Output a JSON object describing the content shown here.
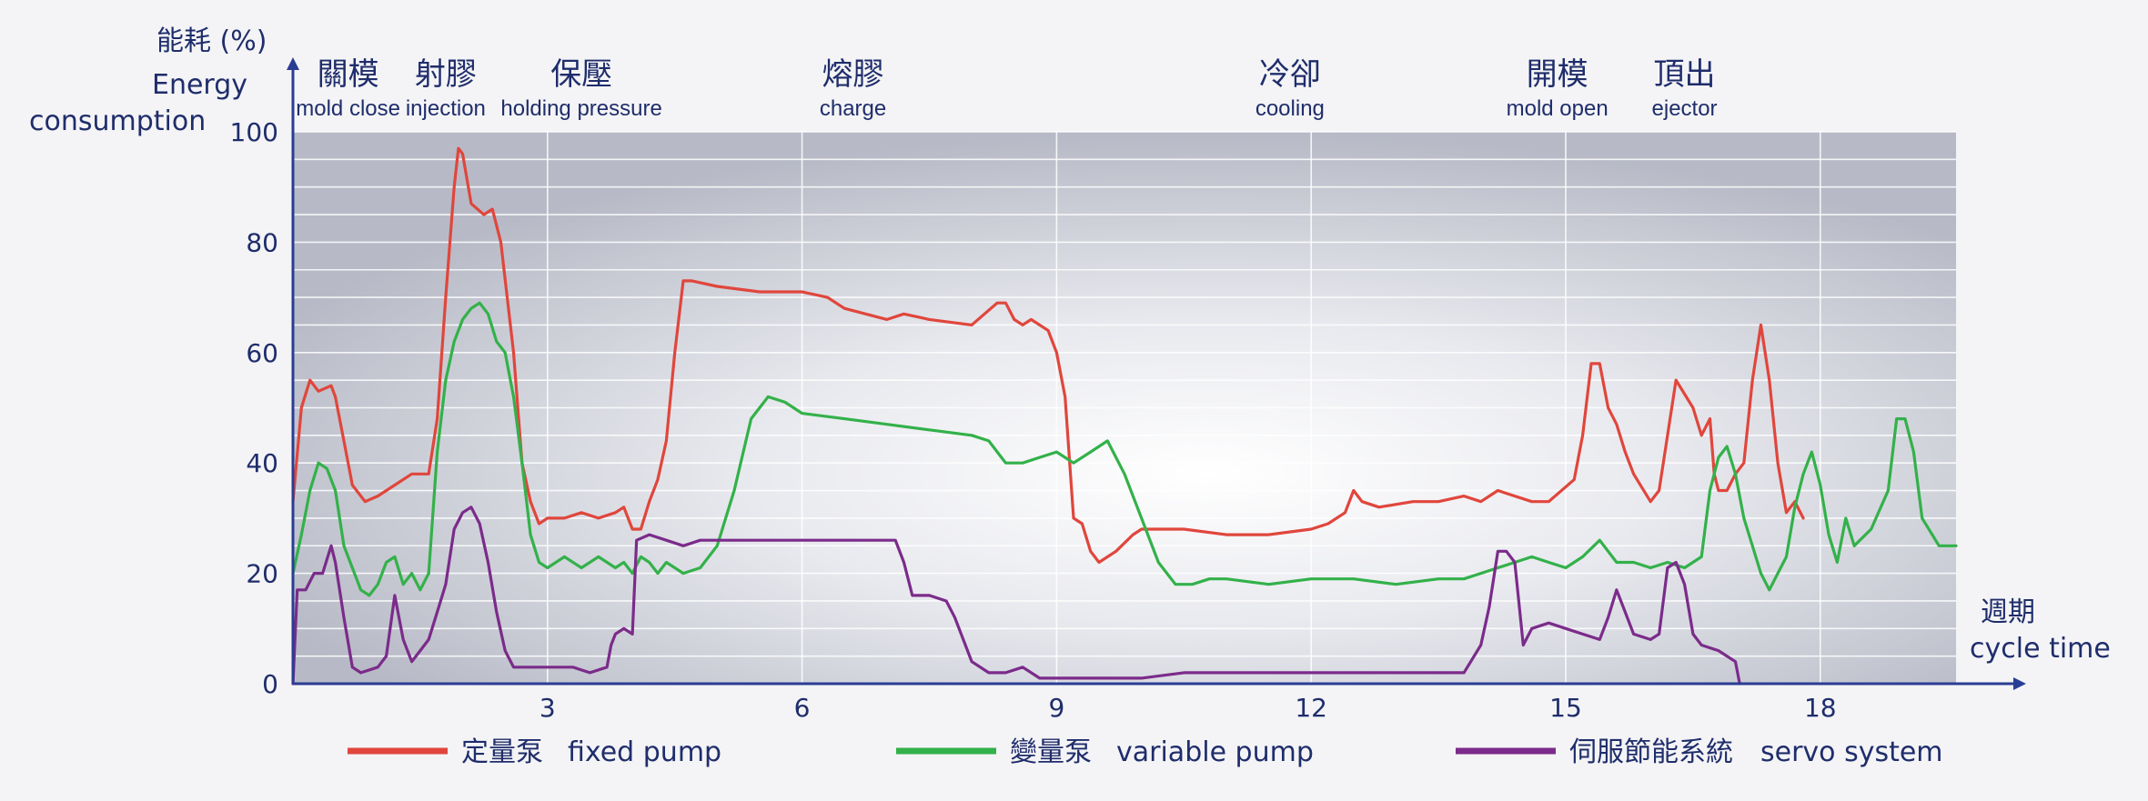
{
  "chart_data": {
    "type": "line",
    "title": "",
    "ylabel_cn": "能耗 (%)",
    "ylabel_en_1": "Energy",
    "ylabel_en_2": "consumption",
    "xlabel_cn": "週期",
    "xlabel_en": "cycle time",
    "ylim": [
      0,
      100
    ],
    "xlim": [
      0,
      19.6
    ],
    "x_ticks": [
      3,
      6,
      9,
      12,
      15,
      18
    ],
    "y_ticks": [
      0,
      20,
      40,
      60,
      80,
      100
    ],
    "grid": true,
    "legend_position": "bottom",
    "phases": [
      {
        "cn": "關模",
        "en": "mold close",
        "x": 0.65
      },
      {
        "cn": "射膠",
        "en": "injection",
        "x": 1.8
      },
      {
        "cn": "保壓",
        "en": "holding pressure",
        "x": 3.4
      },
      {
        "cn": "熔膠",
        "en": "charge",
        "x": 6.6
      },
      {
        "cn": "冷卻",
        "en": "cooling",
        "x": 11.75
      },
      {
        "cn": "開模",
        "en": "mold open",
        "x": 14.9
      },
      {
        "cn": "頂出",
        "en": "ejector",
        "x": 16.4
      }
    ],
    "series": [
      {
        "name": "定量泵",
        "name_en": "fixed pump",
        "color": "#e0463c",
        "points": [
          [
            0,
            33
          ],
          [
            0.1,
            50
          ],
          [
            0.2,
            55
          ],
          [
            0.3,
            53
          ],
          [
            0.45,
            54
          ],
          [
            0.5,
            52
          ],
          [
            0.6,
            44
          ],
          [
            0.7,
            36
          ],
          [
            0.85,
            33
          ],
          [
            1.0,
            34
          ],
          [
            1.2,
            36
          ],
          [
            1.4,
            38
          ],
          [
            1.5,
            38
          ],
          [
            1.6,
            38
          ],
          [
            1.7,
            48
          ],
          [
            1.8,
            70
          ],
          [
            1.9,
            90
          ],
          [
            1.95,
            97
          ],
          [
            2.0,
            96
          ],
          [
            2.1,
            87
          ],
          [
            2.25,
            85
          ],
          [
            2.35,
            86
          ],
          [
            2.45,
            80
          ],
          [
            2.6,
            60
          ],
          [
            2.7,
            40
          ],
          [
            2.8,
            33
          ],
          [
            2.9,
            29
          ],
          [
            3.0,
            30
          ],
          [
            3.2,
            30
          ],
          [
            3.4,
            31
          ],
          [
            3.6,
            30
          ],
          [
            3.8,
            31
          ],
          [
            3.9,
            32
          ],
          [
            3.95,
            30
          ],
          [
            4.0,
            28
          ],
          [
            4.1,
            28
          ],
          [
            4.2,
            33
          ],
          [
            4.3,
            37
          ],
          [
            4.4,
            44
          ],
          [
            4.5,
            60
          ],
          [
            4.6,
            73
          ],
          [
            4.7,
            73
          ],
          [
            5.0,
            72
          ],
          [
            5.5,
            71
          ],
          [
            6.0,
            71
          ],
          [
            6.3,
            70
          ],
          [
            6.5,
            68
          ],
          [
            7.0,
            66
          ],
          [
            7.2,
            67
          ],
          [
            7.5,
            66
          ],
          [
            8.0,
            65
          ],
          [
            8.3,
            69
          ],
          [
            8.4,
            69
          ],
          [
            8.5,
            66
          ],
          [
            8.6,
            65
          ],
          [
            8.7,
            66
          ],
          [
            8.9,
            64
          ],
          [
            9.0,
            60
          ],
          [
            9.1,
            52
          ],
          [
            9.2,
            30
          ],
          [
            9.3,
            29
          ],
          [
            9.4,
            24
          ],
          [
            9.5,
            22
          ],
          [
            9.7,
            24
          ],
          [
            9.9,
            27
          ],
          [
            10.0,
            28
          ],
          [
            10.5,
            28
          ],
          [
            11.0,
            27
          ],
          [
            11.5,
            27
          ],
          [
            12.0,
            28
          ],
          [
            12.2,
            29
          ],
          [
            12.4,
            31
          ],
          [
            12.5,
            35
          ],
          [
            12.6,
            33
          ],
          [
            12.8,
            32
          ],
          [
            13.2,
            33
          ],
          [
            13.5,
            33
          ],
          [
            13.8,
            34
          ],
          [
            14.0,
            33
          ],
          [
            14.2,
            35
          ],
          [
            14.4,
            34
          ],
          [
            14.6,
            33
          ],
          [
            14.8,
            33
          ],
          [
            15.1,
            37
          ],
          [
            15.2,
            45
          ],
          [
            15.3,
            58
          ],
          [
            15.4,
            58
          ],
          [
            15.5,
            50
          ],
          [
            15.6,
            47
          ],
          [
            15.7,
            42
          ],
          [
            15.8,
            38
          ],
          [
            16.0,
            33
          ],
          [
            16.1,
            35
          ],
          [
            16.2,
            45
          ],
          [
            16.3,
            55
          ],
          [
            16.5,
            50
          ],
          [
            16.6,
            45
          ],
          [
            16.7,
            48
          ],
          [
            16.75,
            38
          ],
          [
            16.8,
            35
          ],
          [
            16.9,
            35
          ],
          [
            17.0,
            38
          ],
          [
            17.1,
            40
          ],
          [
            17.2,
            55
          ],
          [
            17.3,
            65
          ],
          [
            17.4,
            55
          ],
          [
            17.5,
            40
          ],
          [
            17.6,
            31
          ],
          [
            17.7,
            33
          ],
          [
            17.8,
            30
          ]
        ]
      },
      {
        "name": "變量泵",
        "name_en": "variable pump",
        "color": "#33b14a",
        "points": [
          [
            0,
            20
          ],
          [
            0.1,
            27
          ],
          [
            0.2,
            35
          ],
          [
            0.3,
            40
          ],
          [
            0.4,
            39
          ],
          [
            0.5,
            35
          ],
          [
            0.6,
            25
          ],
          [
            0.8,
            17
          ],
          [
            0.9,
            16
          ],
          [
            1.0,
            18
          ],
          [
            1.1,
            22
          ],
          [
            1.2,
            23
          ],
          [
            1.3,
            18
          ],
          [
            1.4,
            20
          ],
          [
            1.5,
            17
          ],
          [
            1.6,
            20
          ],
          [
            1.65,
            31
          ],
          [
            1.7,
            42
          ],
          [
            1.8,
            55
          ],
          [
            1.9,
            62
          ],
          [
            2.0,
            66
          ],
          [
            2.1,
            68
          ],
          [
            2.2,
            69
          ],
          [
            2.3,
            67
          ],
          [
            2.4,
            62
          ],
          [
            2.5,
            60
          ],
          [
            2.6,
            52
          ],
          [
            2.7,
            40
          ],
          [
            2.8,
            27
          ],
          [
            2.9,
            22
          ],
          [
            3.0,
            21
          ],
          [
            3.2,
            23
          ],
          [
            3.4,
            21
          ],
          [
            3.6,
            23
          ],
          [
            3.8,
            21
          ],
          [
            3.9,
            22
          ],
          [
            4.0,
            20
          ],
          [
            4.1,
            23
          ],
          [
            4.2,
            22
          ],
          [
            4.3,
            20
          ],
          [
            4.4,
            22
          ],
          [
            4.5,
            21
          ],
          [
            4.6,
            20
          ],
          [
            4.8,
            21
          ],
          [
            5.0,
            25
          ],
          [
            5.2,
            35
          ],
          [
            5.4,
            48
          ],
          [
            5.6,
            52
          ],
          [
            5.8,
            51
          ],
          [
            6.0,
            49
          ],
          [
            6.5,
            48
          ],
          [
            7.0,
            47
          ],
          [
            7.5,
            46
          ],
          [
            8.0,
            45
          ],
          [
            8.2,
            44
          ],
          [
            8.4,
            40
          ],
          [
            8.6,
            40
          ],
          [
            8.8,
            41
          ],
          [
            9.0,
            42
          ],
          [
            9.2,
            40
          ],
          [
            9.4,
            42
          ],
          [
            9.6,
            44
          ],
          [
            9.8,
            38
          ],
          [
            10.0,
            30
          ],
          [
            10.2,
            22
          ],
          [
            10.4,
            18
          ],
          [
            10.6,
            18
          ],
          [
            10.8,
            19
          ],
          [
            11.0,
            19
          ],
          [
            11.5,
            18
          ],
          [
            12.0,
            19
          ],
          [
            12.5,
            19
          ],
          [
            13.0,
            18
          ],
          [
            13.5,
            19
          ],
          [
            13.8,
            19
          ],
          [
            14.0,
            20
          ],
          [
            14.2,
            21
          ],
          [
            14.4,
            22
          ],
          [
            14.6,
            23
          ],
          [
            14.8,
            22
          ],
          [
            15.0,
            21
          ],
          [
            15.2,
            23
          ],
          [
            15.4,
            26
          ],
          [
            15.6,
            22
          ],
          [
            15.8,
            22
          ],
          [
            16.0,
            21
          ],
          [
            16.2,
            22
          ],
          [
            16.4,
            21
          ],
          [
            16.6,
            23
          ],
          [
            16.7,
            35
          ],
          [
            16.8,
            41
          ],
          [
            16.9,
            43
          ],
          [
            17.0,
            38
          ],
          [
            17.1,
            30
          ],
          [
            17.2,
            25
          ],
          [
            17.3,
            20
          ],
          [
            17.4,
            17
          ],
          [
            17.5,
            20
          ],
          [
            17.6,
            23
          ],
          [
            17.7,
            32
          ],
          [
            17.8,
            38
          ],
          [
            17.9,
            42
          ],
          [
            18.0,
            36
          ],
          [
            18.1,
            27
          ],
          [
            18.2,
            22
          ],
          [
            18.3,
            30
          ],
          [
            18.4,
            25
          ],
          [
            18.6,
            28
          ],
          [
            18.8,
            35
          ],
          [
            18.9,
            48
          ],
          [
            19.0,
            48
          ],
          [
            19.1,
            42
          ],
          [
            19.2,
            30
          ],
          [
            19.4,
            25
          ],
          [
            19.6,
            25
          ]
        ]
      },
      {
        "name": "伺服節能系統",
        "name_en": "servo system",
        "color": "#7b2b8a",
        "points": [
          [
            0,
            0
          ],
          [
            0.05,
            17
          ],
          [
            0.15,
            17
          ],
          [
            0.25,
            20
          ],
          [
            0.35,
            20
          ],
          [
            0.45,
            25
          ],
          [
            0.5,
            22
          ],
          [
            0.6,
            12
          ],
          [
            0.7,
            3
          ],
          [
            0.8,
            2
          ],
          [
            1.0,
            3
          ],
          [
            1.1,
            5
          ],
          [
            1.2,
            16
          ],
          [
            1.3,
            8
          ],
          [
            1.4,
            4
          ],
          [
            1.5,
            6
          ],
          [
            1.6,
            8
          ],
          [
            1.7,
            13
          ],
          [
            1.8,
            18
          ],
          [
            1.9,
            28
          ],
          [
            2.0,
            31
          ],
          [
            2.1,
            32
          ],
          [
            2.2,
            29
          ],
          [
            2.3,
            22
          ],
          [
            2.4,
            13
          ],
          [
            2.5,
            6
          ],
          [
            2.6,
            3
          ],
          [
            2.8,
            3
          ],
          [
            3.0,
            3
          ],
          [
            3.3,
            3
          ],
          [
            3.5,
            2
          ],
          [
            3.7,
            3
          ],
          [
            3.75,
            7
          ],
          [
            3.8,
            9
          ],
          [
            3.9,
            10
          ],
          [
            4.0,
            9
          ],
          [
            4.05,
            26
          ],
          [
            4.2,
            27
          ],
          [
            4.4,
            26
          ],
          [
            4.6,
            25
          ],
          [
            4.8,
            26
          ],
          [
            5.0,
            26
          ],
          [
            5.5,
            26
          ],
          [
            6.0,
            26
          ],
          [
            6.5,
            26
          ],
          [
            7.0,
            26
          ],
          [
            7.1,
            26
          ],
          [
            7.2,
            22
          ],
          [
            7.3,
            16
          ],
          [
            7.5,
            16
          ],
          [
            7.7,
            15
          ],
          [
            7.8,
            12
          ],
          [
            8.0,
            4
          ],
          [
            8.2,
            2
          ],
          [
            8.4,
            2
          ],
          [
            8.6,
            3
          ],
          [
            8.8,
            1
          ],
          [
            9.0,
            1
          ],
          [
            9.5,
            1
          ],
          [
            10.0,
            1
          ],
          [
            10.5,
            2
          ],
          [
            11.0,
            2
          ],
          [
            11.5,
            2
          ],
          [
            12.0,
            2
          ],
          [
            12.5,
            2
          ],
          [
            13.0,
            2
          ],
          [
            13.5,
            2
          ],
          [
            13.8,
            2
          ],
          [
            14.0,
            7
          ],
          [
            14.1,
            14
          ],
          [
            14.2,
            24
          ],
          [
            14.3,
            24
          ],
          [
            14.4,
            22
          ],
          [
            14.5,
            7
          ],
          [
            14.6,
            10
          ],
          [
            14.8,
            11
          ],
          [
            15.0,
            10
          ],
          [
            15.2,
            9
          ],
          [
            15.4,
            8
          ],
          [
            15.5,
            12
          ],
          [
            15.6,
            17
          ],
          [
            15.7,
            13
          ],
          [
            15.8,
            9
          ],
          [
            16.0,
            8
          ],
          [
            16.1,
            9
          ],
          [
            16.2,
            21
          ],
          [
            16.3,
            22
          ],
          [
            16.4,
            18
          ],
          [
            16.5,
            9
          ],
          [
            16.6,
            7
          ],
          [
            16.8,
            6
          ],
          [
            17.0,
            4
          ],
          [
            17.05,
            0
          ]
        ]
      }
    ]
  }
}
